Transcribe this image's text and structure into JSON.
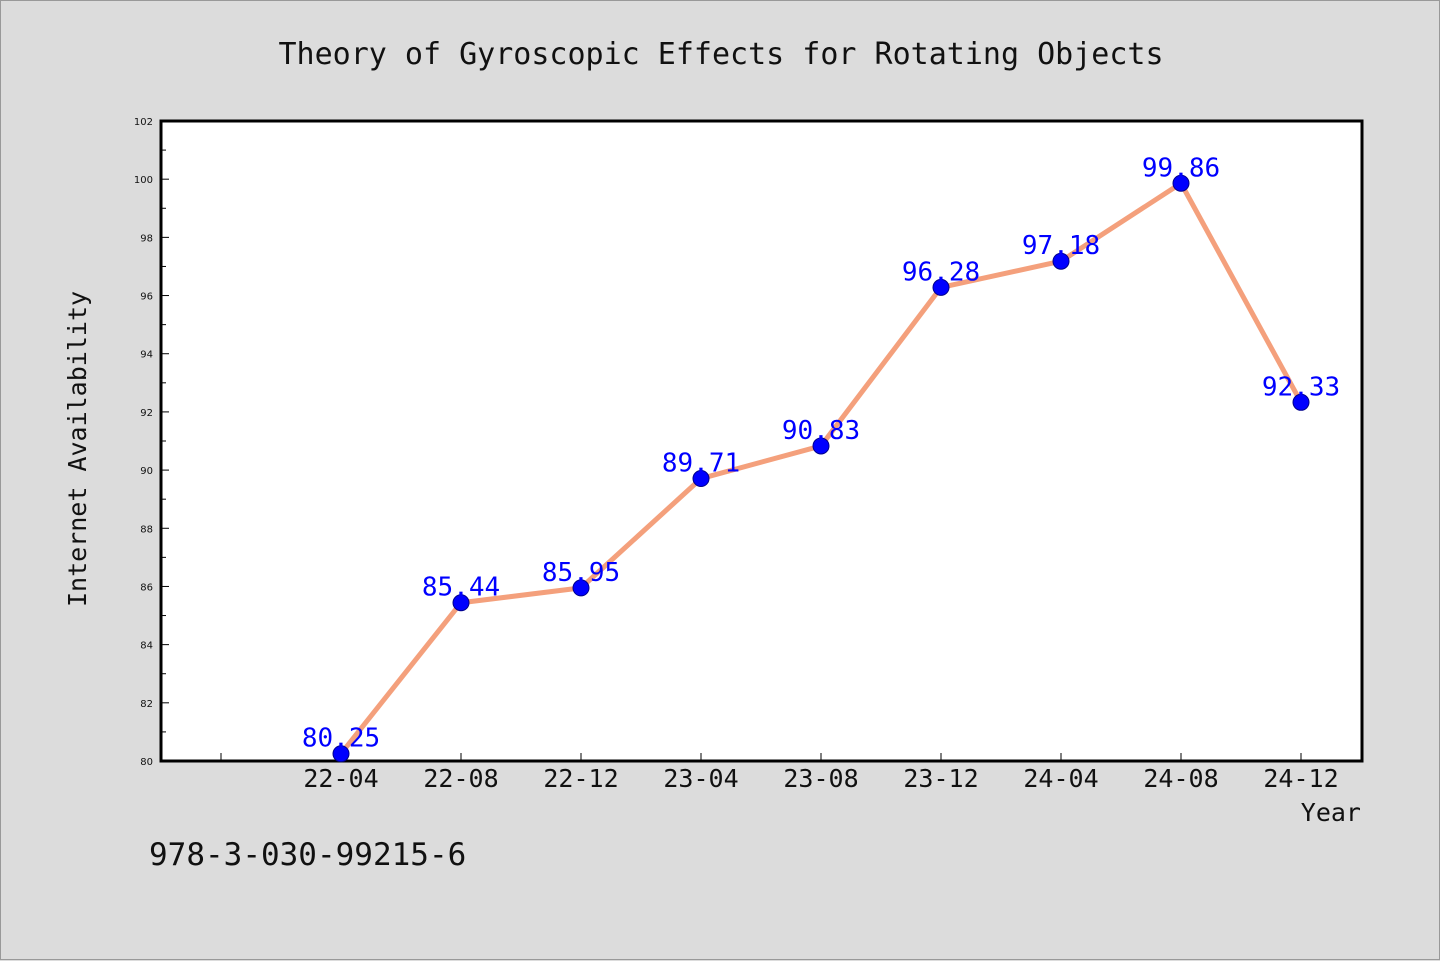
{
  "chart_data": {
    "type": "line",
    "title": "Theory of Gyroscopic Effects for Rotating Objects",
    "xlabel": "Year",
    "ylabel": "Internet Availability",
    "categories": [
      "22-04",
      "22-08",
      "22-12",
      "23-04",
      "23-08",
      "23-12",
      "24-04",
      "24-08",
      "24-12"
    ],
    "series": [
      {
        "values": [
          80.25,
          85.44,
          85.95,
          89.71,
          90.83,
          96.28,
          97.18,
          99.86,
          92.33
        ],
        "labels": [
          "80.25",
          "85.44",
          "85.95",
          "89.71",
          "90.83",
          "96.28",
          "97.18",
          "99.86",
          "92.33"
        ]
      }
    ],
    "ylim": [
      80,
      102
    ],
    "yticks": [
      "80",
      "82",
      "84",
      "86",
      "88",
      "90",
      "92",
      "94",
      "96",
      "98",
      "100",
      "102"
    ],
    "grid": false,
    "legend": "none",
    "colors": {
      "line": "#f4a07c",
      "marker": "#0000ff",
      "data_label": "#0000ff",
      "background": "#dcdcdc",
      "plot_background": "#ffffff"
    }
  },
  "footnote": "978-3-030-99215-6"
}
